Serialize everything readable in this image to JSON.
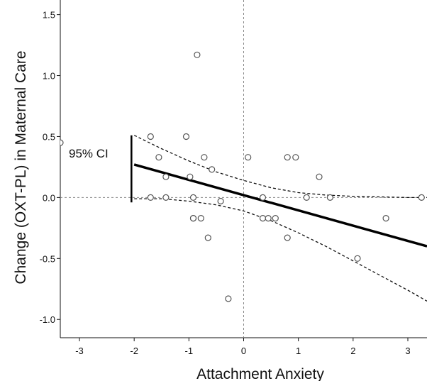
{
  "chart_data": {
    "type": "scatter",
    "xlabel": "Attachment Anxiety",
    "ylabel": "Change (OXT-PL) in Maternal Care",
    "xlim": [
      -3.35,
      3.35
    ],
    "ylim": [
      -1.15,
      1.62
    ],
    "xticks": [
      -3,
      -2,
      -1,
      0,
      1,
      2,
      3
    ],
    "yticks": [
      -1.0,
      -0.5,
      0.0,
      0.5,
      1.0,
      1.5
    ],
    "ytick_labels": [
      "-1.0",
      "-0.5",
      "0.0",
      "0.5",
      "1.0",
      "1.5"
    ],
    "xtick_labels": [
      "-3",
      "-2",
      "-1",
      "0",
      "1",
      "2",
      "3"
    ],
    "grid": false,
    "reference_lines": {
      "x": 0,
      "y": 0,
      "style": "dashed"
    },
    "points": [
      {
        "x": -3.35,
        "y": 0.45
      },
      {
        "x": -1.7,
        "y": 0.5
      },
      {
        "x": -1.7,
        "y": 0.0
      },
      {
        "x": -1.55,
        "y": 0.33
      },
      {
        "x": -1.42,
        "y": 0.17
      },
      {
        "x": -1.42,
        "y": 0.0
      },
      {
        "x": -1.05,
        "y": 0.5
      },
      {
        "x": -0.98,
        "y": 0.17
      },
      {
        "x": -0.92,
        "y": 0.0
      },
      {
        "x": -0.92,
        "y": -0.17
      },
      {
        "x": -0.92,
        "y": -0.17
      },
      {
        "x": -0.85,
        "y": 1.17
      },
      {
        "x": -0.78,
        "y": -0.17
      },
      {
        "x": -0.72,
        "y": 0.33
      },
      {
        "x": -0.65,
        "y": -0.33
      },
      {
        "x": -0.58,
        "y": 0.23
      },
      {
        "x": -0.42,
        "y": -0.03
      },
      {
        "x": -0.28,
        "y": -0.83
      },
      {
        "x": 0.08,
        "y": 0.33
      },
      {
        "x": 0.35,
        "y": 0.0
      },
      {
        "x": 0.35,
        "y": -0.17
      },
      {
        "x": 0.45,
        "y": -0.17
      },
      {
        "x": 0.58,
        "y": -0.17
      },
      {
        "x": 0.8,
        "y": 0.33
      },
      {
        "x": 0.8,
        "y": -0.33
      },
      {
        "x": 0.95,
        "y": 0.33
      },
      {
        "x": 1.15,
        "y": 0.0
      },
      {
        "x": 1.38,
        "y": 0.17
      },
      {
        "x": 1.58,
        "y": 0.0
      },
      {
        "x": 2.08,
        "y": -0.5
      },
      {
        "x": 2.6,
        "y": -0.17
      },
      {
        "x": 3.25,
        "y": 0.0
      }
    ],
    "regression_line": {
      "x": [
        -2.0,
        3.35
      ],
      "y": [
        0.27,
        -0.4
      ]
    },
    "ci_upper": {
      "x": [
        -2.0,
        -1.5,
        -1.0,
        -0.5,
        0.0,
        0.5,
        1.0,
        1.5,
        2.0,
        2.5,
        3.0,
        3.35
      ],
      "y": [
        0.51,
        0.4,
        0.3,
        0.21,
        0.14,
        0.08,
        0.04,
        0.02,
        0.01,
        0.005,
        0.0,
        0.0
      ]
    },
    "ci_lower": {
      "x": [
        -2.0,
        -1.5,
        -1.0,
        -0.5,
        0.0,
        0.5,
        1.0,
        1.5,
        2.0,
        2.5,
        3.0,
        3.35
      ],
      "y": [
        -0.01,
        -0.01,
        -0.03,
        -0.06,
        -0.11,
        -0.19,
        -0.29,
        -0.4,
        -0.52,
        -0.64,
        -0.76,
        -0.85
      ]
    },
    "annotation": {
      "text": "95% CI",
      "bar_x": -2.05,
      "bar_y": [
        0.51,
        -0.04
      ]
    }
  }
}
